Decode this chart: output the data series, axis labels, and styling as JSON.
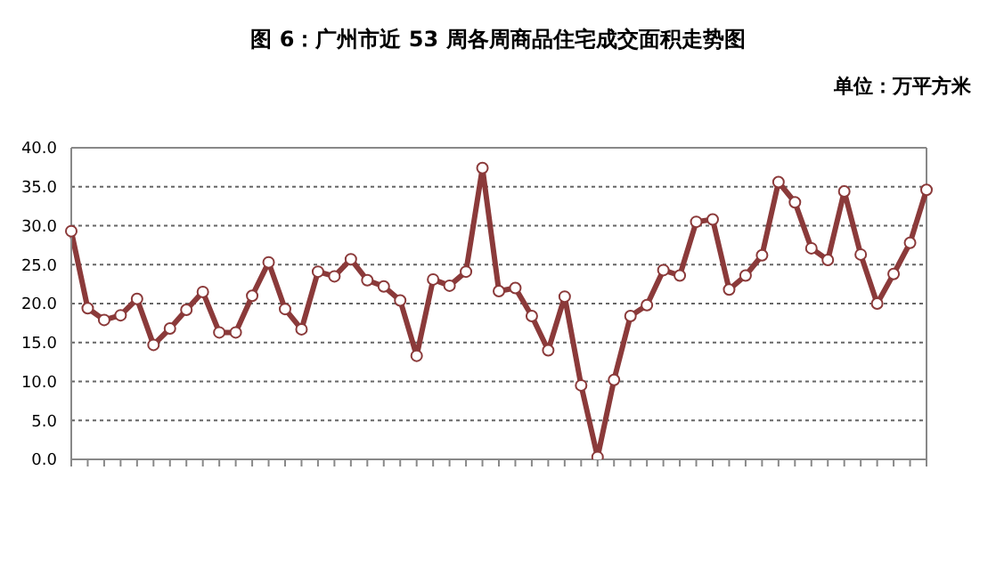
{
  "chart_data": {
    "type": "line",
    "title": "图 6：广州市近 53 周各周商品住宅成交面积走势图",
    "ylabel": "单位：万平方米",
    "categories": [
      null,
      null,
      null,
      null,
      null,
      null,
      null,
      null,
      null,
      null,
      null,
      null,
      null,
      null,
      null,
      null,
      null,
      null,
      null,
      null,
      null,
      null,
      null,
      null,
      null,
      null,
      null,
      null,
      null,
      null,
      null,
      null,
      null,
      null,
      null,
      null,
      null,
      null,
      null,
      null,
      null,
      null,
      null,
      null,
      null,
      null,
      null,
      null,
      null,
      null,
      null,
      null,
      null
    ],
    "series": [
      {
        "color": "#8b3a3a",
        "values": [
          29.3,
          19.4,
          17.9,
          18.5,
          20.6,
          14.7,
          16.8,
          19.2,
          21.5,
          16.3,
          16.3,
          21.0,
          25.3,
          19.3,
          16.7,
          24.1,
          23.5,
          25.7,
          23.0,
          22.2,
          20.4,
          13.3,
          23.1,
          22.3,
          24.1,
          37.4,
          21.6,
          22.0,
          18.4,
          14.0,
          20.9,
          9.5,
          0.3,
          10.2,
          18.4,
          19.8,
          24.3,
          23.6,
          30.5,
          30.8,
          21.8,
          23.6,
          26.2,
          35.6,
          33.0,
          27.1,
          25.6,
          34.4,
          26.3,
          20.0,
          23.8,
          27.8,
          34.6
        ]
      }
    ],
    "ylim": [
      0,
      40
    ],
    "yticks": [
      {
        "value": 0,
        "label": "0.0"
      },
      {
        "value": 5,
        "label": "5.0"
      },
      {
        "value": 10,
        "label": "10.0"
      },
      {
        "value": 15,
        "label": "15.0"
      },
      {
        "value": 20,
        "label": "20.0"
      },
      {
        "value": 25,
        "label": "25.0"
      },
      {
        "value": 30,
        "label": "30.0"
      },
      {
        "value": 35,
        "label": "35.0"
      },
      {
        "value": 40,
        "label": "40.0"
      }
    ],
    "grid": "y",
    "legend": false,
    "marker": "circle",
    "line_style": "solid",
    "tick_labels": "y"
  }
}
